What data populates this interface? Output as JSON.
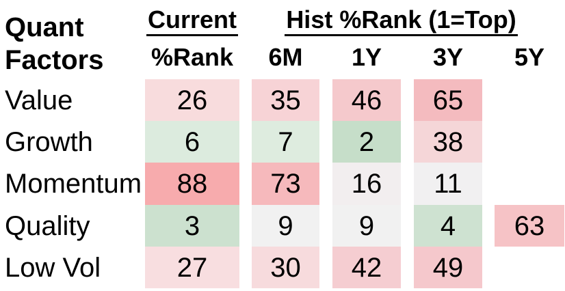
{
  "title_block": {
    "line1": "Quant",
    "line2": "Factors"
  },
  "headers": {
    "current_group": "Current",
    "current_sub": "%Rank",
    "hist_group": "Hist %Rank (1=Top)",
    "hist_subs": [
      "6M",
      "1Y",
      "3Y",
      "5Y"
    ]
  },
  "heatmap_scale_colors": {
    "strong_green_low_rank": "#c6dec9",
    "neutral_mid": "#f1f0f1",
    "strong_red_high_rank": "#f7abad"
  },
  "table": {
    "rows": [
      {
        "label": "Value",
        "cells": [
          {
            "value": "26",
            "color": "#f8dcdd"
          },
          {
            "value": "35",
            "color": "#f7d3d6"
          },
          {
            "value": "46",
            "color": "#f5c9cc"
          },
          {
            "value": "65",
            "color": "#f4bbbf"
          }
        ]
      },
      {
        "label": "Growth",
        "cells": [
          {
            "value": "6",
            "color": "#dcebde"
          },
          {
            "value": "7",
            "color": "#deecdf"
          },
          {
            "value": "2",
            "color": "#c6dec9"
          },
          {
            "value": "38",
            "color": "#f5d6d8"
          }
        ]
      },
      {
        "label": "Momentum",
        "cells": [
          {
            "value": "88",
            "color": "#f7abad"
          },
          {
            "value": "73",
            "color": "#f6b9bc"
          },
          {
            "value": "16",
            "color": "#f2eeef"
          },
          {
            "value": "11",
            "color": "#f1f0f1"
          }
        ]
      },
      {
        "label": "Quality",
        "cells": [
          {
            "value": "3",
            "color": "#cce1cf"
          },
          {
            "value": "9",
            "color": "#f1f1f1"
          },
          {
            "value": "9",
            "color": "#f1f1f1"
          },
          {
            "value": "4",
            "color": "#cee2d1"
          },
          {
            "value": "63",
            "color": "#f6c3c6"
          }
        ]
      },
      {
        "label": "Low Vol",
        "cells": [
          {
            "value": "27",
            "color": "#f8dee0"
          },
          {
            "value": "30",
            "color": "#f7dbdd"
          },
          {
            "value": "42",
            "color": "#f5cdd1"
          },
          {
            "value": "49",
            "color": "#f5c8cc"
          }
        ]
      }
    ]
  },
  "chart_data": {
    "type": "heatmap",
    "title": "Quant Factors — Current %Rank and Hist %Rank (1=Top)",
    "row_labels": [
      "Value",
      "Growth",
      "Momentum",
      "Quality",
      "Low Vol"
    ],
    "column_labels": [
      "Current %Rank",
      "6M",
      "1Y",
      "3Y",
      "5Y"
    ],
    "values": [
      [
        26,
        35,
        46,
        65,
        null
      ],
      [
        6,
        7,
        2,
        38,
        null
      ],
      [
        88,
        73,
        16,
        11,
        null
      ],
      [
        3,
        9,
        9,
        4,
        63
      ],
      [
        27,
        30,
        42,
        49,
        null
      ]
    ],
    "value_range": [
      1,
      100
    ],
    "color_scale": "green = low rank (1 = top), white = mid, red = high rank",
    "legend_position": "none",
    "grid": false
  }
}
